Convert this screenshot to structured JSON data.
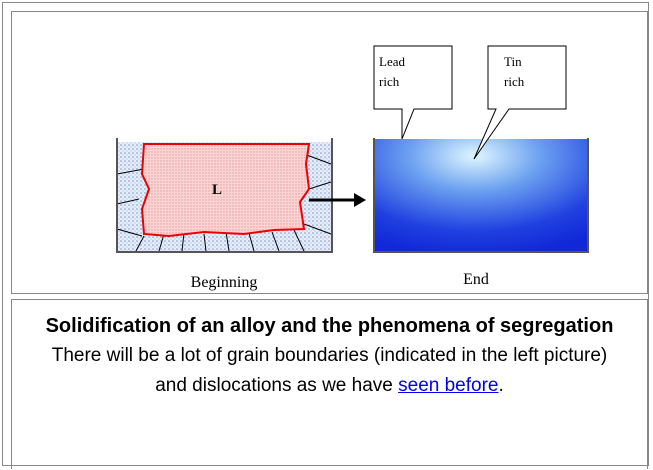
{
  "figure": {
    "callouts": [
      {
        "lines": [
          "Lead",
          "rich"
        ]
      },
      {
        "lines": [
          "Tin",
          "rich"
        ]
      }
    ],
    "liquid_label": "L",
    "left_caption": "Beginning",
    "right_caption": "End"
  },
  "caption": {
    "title": "Solidification of an alloy and the phenomena of segregation",
    "text": "There will be a lot of grain boundaries (indicated in the left picture)",
    "text2_before": "and dislocations as we have ",
    "link": "seen before",
    "text2_after": "."
  }
}
